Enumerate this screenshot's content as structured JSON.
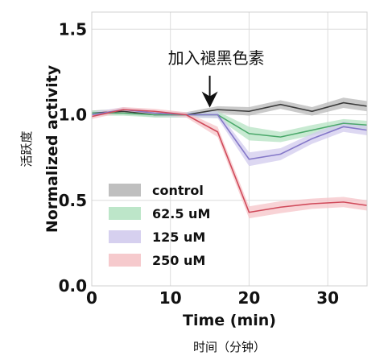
{
  "chart_data": {
    "type": "line",
    "title": "",
    "xlabel": "Time (min)",
    "xlabel_cn": "时间（分钟）",
    "ylabel": "Normalized activity",
    "ylabel_cn": "活跃度",
    "xlim": [
      0,
      35
    ],
    "ylim": [
      0,
      1.6
    ],
    "x_ticks": [
      0,
      10,
      20,
      30
    ],
    "x_tick_labels": [
      "0",
      "10",
      "20",
      "30"
    ],
    "y_ticks": [
      0,
      0.5,
      1.0,
      1.5
    ],
    "y_tick_labels": [
      "0.0",
      "0.5",
      "1.0",
      "1.5"
    ],
    "grid": true,
    "legend_placement": "lower-left",
    "annotation": {
      "text": "加入褪黑色素",
      "x": 15,
      "arrow_to_y": 1.07
    },
    "x": [
      0,
      4,
      8,
      12,
      16,
      20,
      24,
      28,
      32,
      35
    ],
    "series": [
      {
        "name": "control",
        "color": "#3a3a3a",
        "band_color": "#b8b8b8",
        "values": [
          1.01,
          1.02,
          1.0,
          1.0,
          1.03,
          1.02,
          1.06,
          1.02,
          1.07,
          1.05
        ],
        "band": [
          0.015,
          0.015,
          0.015,
          0.015,
          0.02,
          0.025,
          0.025,
          0.025,
          0.03,
          0.03
        ]
      },
      {
        "name": "62.5 uM",
        "color": "#4aa86a",
        "band_color": "#b6e3c3",
        "values": [
          1.01,
          1.01,
          1.0,
          1.0,
          1.0,
          0.89,
          0.87,
          0.91,
          0.95,
          0.94
        ],
        "band": [
          0.015,
          0.015,
          0.015,
          0.015,
          0.02,
          0.04,
          0.03,
          0.03,
          0.025,
          0.025
        ]
      },
      {
        "name": "125 uM",
        "color": "#8478c8",
        "band_color": "#d1cbed",
        "values": [
          1.0,
          1.03,
          1.01,
          1.0,
          1.0,
          0.74,
          0.77,
          0.86,
          0.93,
          0.91
        ],
        "band": [
          0.015,
          0.015,
          0.015,
          0.015,
          0.02,
          0.04,
          0.035,
          0.03,
          0.03,
          0.03
        ]
      },
      {
        "name": "250 uM",
        "color": "#d04a5a",
        "band_color": "#f5c4c8",
        "values": [
          0.99,
          1.03,
          1.02,
          1.0,
          0.9,
          0.43,
          0.46,
          0.48,
          0.49,
          0.47
        ],
        "band": [
          0.015,
          0.015,
          0.015,
          0.015,
          0.03,
          0.035,
          0.035,
          0.03,
          0.03,
          0.03
        ]
      }
    ]
  }
}
